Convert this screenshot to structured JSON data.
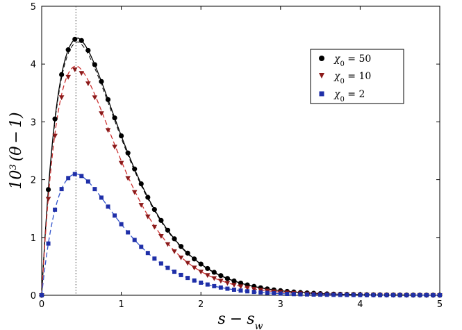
{
  "chart_data": {
    "type": "line",
    "title": "",
    "xlabel": "s − s_w",
    "ylabel": "10³ (θ − 1)",
    "xlim": [
      0,
      5
    ],
    "ylim": [
      0,
      5
    ],
    "xticks": [
      0,
      1,
      2,
      3,
      4,
      5
    ],
    "yticks": [
      0,
      1,
      2,
      3,
      4,
      5
    ],
    "grid": false,
    "legend_position": "top-right",
    "vline_x": 0.43,
    "series": [
      {
        "name": "χ₀ = 50",
        "marker": "circle",
        "color": "#000000",
        "line_color": "#000000",
        "dash": "solid",
        "peak": 4.45,
        "peak_x": 0.46,
        "decay": 2.95
      },
      {
        "name": "χ₀ = 10",
        "marker": "triangle-down",
        "color": "#8b1a1a",
        "line_color": "#cc3333",
        "dash": "dashed",
        "peak": 3.97,
        "peak_x": 0.44,
        "decay": 2.95
      },
      {
        "name": "χ₀ = 2",
        "marker": "square",
        "color": "#1f2fa8",
        "line_color": "#3355cc",
        "dash": "dashed",
        "peak": 2.1,
        "peak_x": 0.44,
        "decay": 2.95
      }
    ],
    "legend_labels": {
      "s50": {
        "sym": "χ",
        "sub": "0",
        "rest": " = 50"
      },
      "s10": {
        "sym": "χ",
        "sub": "0",
        "rest": " = 10"
      },
      "s2": {
        "sym": "χ",
        "sub": "0",
        "rest": " = 2"
      }
    }
  }
}
